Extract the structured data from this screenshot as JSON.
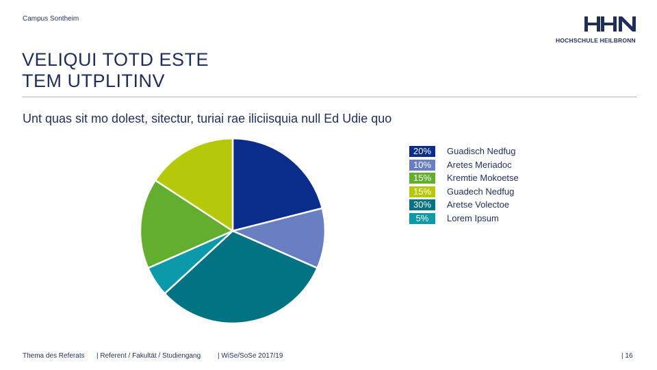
{
  "header": {
    "campus": "Campus Sontheim",
    "logo_text": "HOCHSCHULE HEILBRONN"
  },
  "title_line1": "VELIQUI TOTD ESTE",
  "title_line2": "TEM UTPLITINV",
  "subtitle": "Unt quas sit mo dolest, sitectur, turiai rae iliciisquia null Ed Udie quo",
  "chart_data": {
    "type": "pie",
    "slices": [
      {
        "label": "Guadisch Nedfug",
        "value": 20,
        "pct_label": "20%",
        "color": "#0a2d8c"
      },
      {
        "label": "Aretes Meriadoc",
        "value": 10,
        "pct_label": "10%",
        "color": "#6a7fc2"
      },
      {
        "label": "Aretse Volectoe",
        "value": 30,
        "pct_label": "30%",
        "color": "#007382"
      },
      {
        "label": "Lorem Ipsum",
        "value": 5,
        "pct_label": "5%",
        "color": "#0d9aa8"
      },
      {
        "label": "Kremtie Mokoetse",
        "value": 15,
        "pct_label": "15%",
        "color": "#63ae2e"
      },
      {
        "label": "Guadech Nedfug",
        "value": 15,
        "pct_label": "15%",
        "color": "#b5c90a"
      }
    ],
    "legend": [
      {
        "pct": "20%",
        "label": "Guadisch Nedfug",
        "color": "#0a2d8c"
      },
      {
        "pct": "10%",
        "label": "Aretes Meriadoc",
        "color": "#6a7fc2"
      },
      {
        "pct": "15%",
        "label": "Kremtie Mokoetse",
        "color": "#63ae2e"
      },
      {
        "pct": "15%",
        "label": "Guadech Nedfug",
        "color": "#b5c90a"
      },
      {
        "pct": "30%",
        "label": "Aretse Volectoe",
        "color": "#007382"
      },
      {
        "pct": "5%",
        "label": "Lorem Ipsum",
        "color": "#0d9aa8"
      }
    ],
    "legend_position": "right"
  },
  "footer": {
    "topic": "Thema des Referats",
    "presenter": "| Referent / Fakultät / Studiengang",
    "term": "| WiSe/SoSe 2017/19",
    "page": "| 16"
  }
}
